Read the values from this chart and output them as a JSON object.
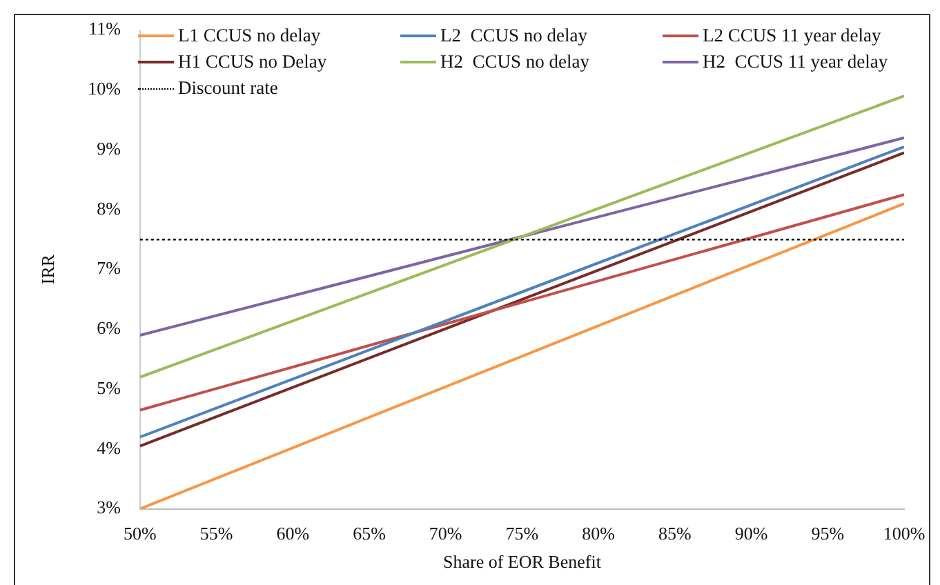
{
  "chart_data": {
    "type": "line",
    "xlabel": "Share of EOR Benefit",
    "ylabel": "IRR",
    "x": [
      50,
      100
    ],
    "series": [
      {
        "name": "L1 CCUS no delay",
        "color": "#f79646",
        "values": [
          3.0,
          8.1
        ]
      },
      {
        "name": "L2  CCUS no delay",
        "color": "#4f81bd",
        "values": [
          4.2,
          9.05
        ]
      },
      {
        "name": "L2 CCUS 11 year delay",
        "color": "#c0504d",
        "values": [
          4.65,
          8.25
        ]
      },
      {
        "name": "H1 CCUS no Delay",
        "color": "#772c2a",
        "values": [
          4.05,
          8.95
        ]
      },
      {
        "name": "H2  CCUS no delay",
        "color": "#9bbb59",
        "values": [
          5.2,
          9.9
        ]
      },
      {
        "name": "H2  CCUS 11 year delay",
        "color": "#8064a2",
        "values": [
          5.9,
          9.2
        ]
      }
    ],
    "ref_lines": [
      {
        "axis": "y",
        "value": 7.5,
        "label": "Discount rate",
        "color": "#000000",
        "line_style": "dotted"
      }
    ],
    "xlim": [
      50,
      100
    ],
    "xticks": [
      {
        "value": 50,
        "label": "50%"
      },
      {
        "value": 55,
        "label": "55%"
      },
      {
        "value": 60,
        "label": "60%"
      },
      {
        "value": 65,
        "label": "65%"
      },
      {
        "value": 70,
        "label": "70%"
      },
      {
        "value": 75,
        "label": "75%"
      },
      {
        "value": 80,
        "label": "80%"
      },
      {
        "value": 85,
        "label": "85%"
      },
      {
        "value": 90,
        "label": "90%"
      },
      {
        "value": 95,
        "label": "95%"
      },
      {
        "value": 100,
        "label": "100%"
      }
    ],
    "ylim": [
      3,
      11
    ],
    "yticks": [
      {
        "value": 3,
        "label": "3%"
      },
      {
        "value": 4,
        "label": "4%"
      },
      {
        "value": 5,
        "label": "5%"
      },
      {
        "value": 6,
        "label": "6%"
      },
      {
        "value": 7,
        "label": "7%"
      },
      {
        "value": 8,
        "label": "8%"
      },
      {
        "value": 9,
        "label": "9%"
      },
      {
        "value": 10,
        "label": "10%"
      },
      {
        "value": 11,
        "label": "11%"
      }
    ],
    "grid": false,
    "legend": "top",
    "marker": "none",
    "line_style": "solid"
  }
}
